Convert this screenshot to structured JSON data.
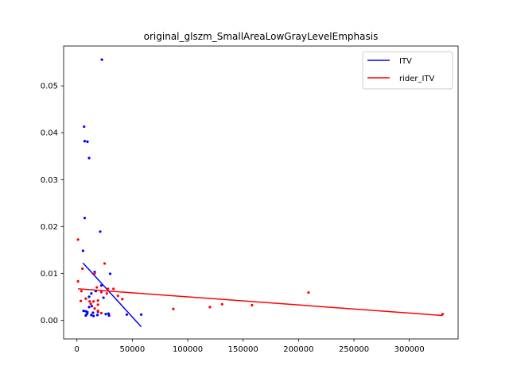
{
  "chart_data": {
    "type": "scatter",
    "title": "original_glszm_SmallAreaLowGrayLevelEmphasis",
    "xlabel": "",
    "ylabel": "",
    "xlim": [
      -12000,
      344000
    ],
    "ylim": [
      -0.004,
      0.0585
    ],
    "x_ticks": [
      0,
      50000,
      100000,
      150000,
      200000,
      250000,
      300000
    ],
    "x_tick_labels": [
      "0",
      "50000",
      "100000",
      "150000",
      "200000",
      "250000",
      "300000"
    ],
    "y_ticks": [
      0.0,
      0.01,
      0.02,
      0.03,
      0.04,
      0.05
    ],
    "y_tick_labels": [
      "0.00",
      "0.01",
      "0.02",
      "0.03",
      "0.04",
      "0.05"
    ],
    "grid": false,
    "legend_position": "top-right",
    "series": [
      {
        "name": "ITV",
        "color": "#0000ff",
        "points": [
          [
            22500,
            0.0556
          ],
          [
            6500,
            0.0413
          ],
          [
            7000,
            0.0382
          ],
          [
            9500,
            0.0381
          ],
          [
            11000,
            0.0346
          ],
          [
            7000,
            0.0218
          ],
          [
            21000,
            0.0189
          ],
          [
            5500,
            0.0148
          ],
          [
            16000,
            0.0103
          ],
          [
            30000,
            0.0099
          ],
          [
            22000,
            0.0074
          ],
          [
            13000,
            0.0057
          ],
          [
            17000,
            0.0062
          ],
          [
            11000,
            0.005
          ],
          [
            24000,
            0.0048
          ],
          [
            13500,
            0.003
          ],
          [
            11000,
            0.0028
          ],
          [
            6000,
            0.002
          ],
          [
            8000,
            0.0019
          ],
          [
            9500,
            0.0017
          ],
          [
            14500,
            0.0016
          ],
          [
            19000,
            0.0018
          ],
          [
            28500,
            0.0014
          ],
          [
            45000,
            0.0012
          ],
          [
            58000,
            0.0012
          ],
          [
            8000,
            0.001
          ],
          [
            15000,
            0.0009
          ],
          [
            13000,
            0.0011
          ],
          [
            18500,
            0.0011
          ],
          [
            29000,
            0.001
          ],
          [
            26000,
            0.0013
          ],
          [
            9000,
            0.0013
          ]
        ],
        "fit": {
          "x": [
            5500,
            58000
          ],
          "y": [
            0.0122,
            -0.0014
          ]
        }
      },
      {
        "name": "rider_ITV",
        "color": "#ff0000",
        "points": [
          [
            1000,
            0.0172
          ],
          [
            5000,
            0.011
          ],
          [
            1000,
            0.0083
          ],
          [
            25000,
            0.0121
          ],
          [
            16000,
            0.01
          ],
          [
            18000,
            0.007
          ],
          [
            28000,
            0.0067
          ],
          [
            33000,
            0.0067
          ],
          [
            37000,
            0.0052
          ],
          [
            41000,
            0.0045
          ],
          [
            8000,
            0.0046
          ],
          [
            11500,
            0.004
          ],
          [
            15000,
            0.004
          ],
          [
            19000,
            0.0042
          ],
          [
            4000,
            0.0062
          ],
          [
            19000,
            0.0033
          ],
          [
            3500,
            0.0041
          ],
          [
            22000,
            0.006
          ],
          [
            27000,
            0.0057
          ],
          [
            12500,
            0.0035
          ],
          [
            87000,
            0.0024
          ],
          [
            120000,
            0.0028
          ],
          [
            131000,
            0.0034
          ],
          [
            158000,
            0.0032
          ],
          [
            209000,
            0.0059
          ],
          [
            330000,
            0.0013
          ],
          [
            16000,
            0.0025
          ],
          [
            19000,
            0.002
          ],
          [
            22000,
            0.0015
          ]
        ],
        "fit": {
          "x": [
            1000,
            330000
          ],
          "y": [
            0.0067,
            0.001
          ]
        }
      }
    ]
  }
}
